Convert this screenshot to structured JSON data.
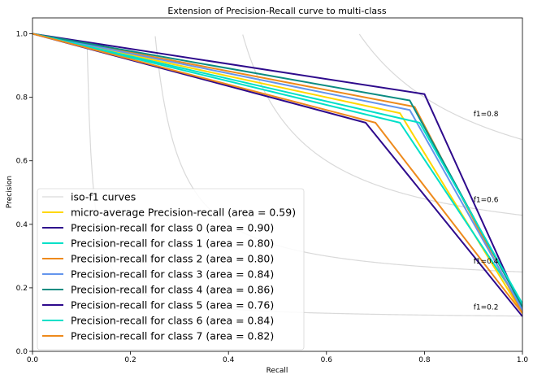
{
  "chart_data": {
    "type": "line",
    "title": "Extension of Precision-Recall curve to multi-class",
    "xlabel": "Recall",
    "ylabel": "Precision",
    "xlim": [
      0,
      1
    ],
    "ylim": [
      0,
      1.05
    ],
    "xticks": [
      "0.0",
      "0.2",
      "0.4",
      "0.6",
      "0.8",
      "1.0"
    ],
    "yticks": [
      "0.0",
      "0.2",
      "0.4",
      "0.6",
      "0.8",
      "1.0"
    ],
    "grid": false,
    "legend_position": "lower-left",
    "iso_f1": {
      "legend": "iso-f1 curves",
      "color": "#d9d9d9",
      "values": [
        0.2,
        0.4,
        0.6,
        0.8
      ],
      "labels": [
        "f1=0.2",
        "f1=0.4",
        "f1=0.6",
        "f1=0.8"
      ]
    },
    "series": [
      {
        "name": "micro-average Precision-recall (area = 0.59)",
        "color": "#ffd700",
        "x": [
          0,
          0.75,
          1
        ],
        "y": [
          1,
          0.75,
          0.12
        ]
      },
      {
        "name": "Precision-recall for class 0 (area = 0.90)",
        "color": "#2e0a8c",
        "x": [
          0,
          0.8,
          1
        ],
        "y": [
          1,
          0.81,
          0.13
        ]
      },
      {
        "name": "Precision-recall for class 1 (area = 0.80)",
        "color": "#00e0c8",
        "x": [
          0,
          0.75,
          1
        ],
        "y": [
          1,
          0.72,
          0.14
        ]
      },
      {
        "name": "Precision-recall for class 2 (area = 0.80)",
        "color": "#ee8a1c",
        "x": [
          0,
          0.78,
          1
        ],
        "y": [
          1,
          0.77,
          0.12
        ]
      },
      {
        "name": "Precision-recall for class 3 (area = 0.84)",
        "color": "#6495ed",
        "x": [
          0,
          0.77,
          1
        ],
        "y": [
          1,
          0.76,
          0.13
        ]
      },
      {
        "name": "Precision-recall for class 4 (area = 0.86)",
        "color": "#0b8c82",
        "x": [
          0,
          0.77,
          1
        ],
        "y": [
          1,
          0.79,
          0.14
        ]
      },
      {
        "name": "Precision-recall for class 5 (area = 0.76)",
        "color": "#2e0a8c",
        "x": [
          0,
          0.68,
          1
        ],
        "y": [
          1,
          0.72,
          0.11
        ]
      },
      {
        "name": "Precision-recall for class 6 (area = 0.84)",
        "color": "#00e0c8",
        "x": [
          0,
          0.79,
          1
        ],
        "y": [
          1,
          0.72,
          0.15
        ]
      },
      {
        "name": "Precision-recall for class 7 (area = 0.82)",
        "color": "#ee8a1c",
        "x": [
          0,
          0.7,
          1
        ],
        "y": [
          1,
          0.72,
          0.12
        ]
      }
    ]
  }
}
